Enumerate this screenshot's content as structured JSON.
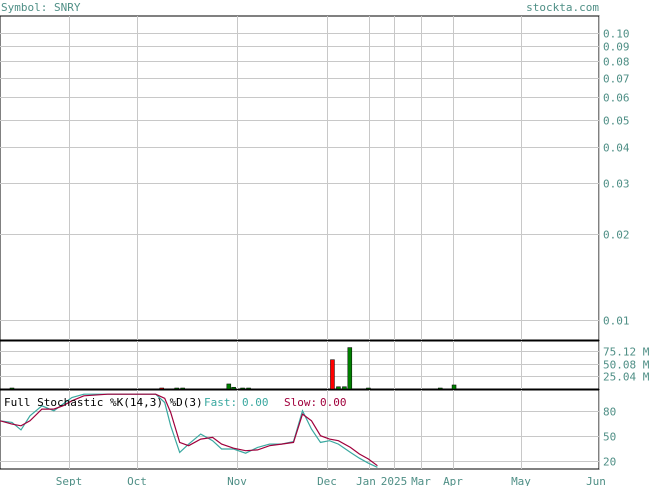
{
  "header": {
    "symbol_label": "Symbol: SNRY",
    "site_label": "stockta.com"
  },
  "colors": {
    "text": "#4f8f86",
    "grid": "#c8c8c8",
    "frame": "#000000",
    "volume_up": "#008000",
    "volume_down": "#ff0000",
    "fast_line": "#3aa8a0",
    "slow_line": "#a0003c"
  },
  "chart_data": [
    {
      "type": "line",
      "name": "price",
      "y_scale": "log",
      "ylim": [
        0.0085,
        0.115
      ],
      "y_ticks": [
        {
          "value": 0.1,
          "label": "0.10"
        },
        {
          "value": 0.09,
          "label": "0.09"
        },
        {
          "value": 0.08,
          "label": "0.08"
        },
        {
          "value": 0.07,
          "label": "0.07"
        },
        {
          "value": 0.06,
          "label": "0.06"
        },
        {
          "value": 0.05,
          "label": "0.05"
        },
        {
          "value": 0.04,
          "label": "0.04"
        },
        {
          "value": 0.03,
          "label": "0.03"
        },
        {
          "value": 0.02,
          "label": "0.02"
        },
        {
          "value": 0.01,
          "label": "0.01"
        }
      ],
      "x_ticks": [
        "Sept",
        "Oct",
        "Nov",
        "Dec",
        "Jan",
        "2025",
        "Mar",
        "Apr",
        "May",
        "Jun"
      ],
      "series": []
    },
    {
      "type": "bar",
      "name": "volume",
      "ylim": [
        0,
        95000000
      ],
      "y_ticks": [
        {
          "value": 75120000,
          "label": "75.12 M"
        },
        {
          "value": 50080000,
          "label": "50.08 M"
        },
        {
          "value": 25040000,
          "label": "25.04 M"
        }
      ],
      "bars": [
        {
          "x": 0.02,
          "value": 1500000,
          "dir": "up"
        },
        {
          "x": 0.27,
          "value": 1200000,
          "dir": "down"
        },
        {
          "x": 0.295,
          "value": 1500000,
          "dir": "up"
        },
        {
          "x": 0.305,
          "value": 1500000,
          "dir": "up"
        },
        {
          "x": 0.382,
          "value": 10000000,
          "dir": "up"
        },
        {
          "x": 0.39,
          "value": 3500000,
          "dir": "up"
        },
        {
          "x": 0.405,
          "value": 1500000,
          "dir": "up"
        },
        {
          "x": 0.415,
          "value": 1500000,
          "dir": "up"
        },
        {
          "x": 0.555,
          "value": 58000000,
          "dir": "down"
        },
        {
          "x": 0.565,
          "value": 4500000,
          "dir": "up"
        },
        {
          "x": 0.575,
          "value": 4500000,
          "dir": "up"
        },
        {
          "x": 0.584,
          "value": 82000000,
          "dir": "up"
        },
        {
          "x": 0.615,
          "value": 1500000,
          "dir": "up"
        },
        {
          "x": 0.735,
          "value": 1500000,
          "dir": "up"
        },
        {
          "x": 0.758,
          "value": 8000000,
          "dir": "up"
        }
      ]
    },
    {
      "type": "line",
      "name": "stochastic",
      "title": "Full Stochastic %K(14,3) %D(3)",
      "fast_label": "Fast:",
      "fast_value": "0.00",
      "slow_label": "Slow:",
      "slow_value": "0.00",
      "ylim": [
        10,
        105
      ],
      "y_ticks": [
        {
          "value": 80,
          "label": "80"
        },
        {
          "value": 50,
          "label": "50"
        },
        {
          "value": 20,
          "label": "20"
        }
      ],
      "series": [
        {
          "name": "Fast",
          "values": [
            [
              0.0,
              68
            ],
            [
              0.02,
              66
            ],
            [
              0.035,
              57
            ],
            [
              0.05,
              74
            ],
            [
              0.07,
              86
            ],
            [
              0.09,
              80
            ],
            [
              0.105,
              88
            ],
            [
              0.12,
              96
            ],
            [
              0.14,
              100
            ],
            [
              0.18,
              100
            ],
            [
              0.22,
              100
            ],
            [
              0.26,
              100
            ],
            [
              0.275,
              90
            ],
            [
              0.285,
              62
            ],
            [
              0.3,
              30
            ],
            [
              0.315,
              40
            ],
            [
              0.335,
              52
            ],
            [
              0.355,
              44
            ],
            [
              0.37,
              34
            ],
            [
              0.39,
              34
            ],
            [
              0.41,
              29
            ],
            [
              0.43,
              36
            ],
            [
              0.45,
              40
            ],
            [
              0.47,
              40
            ],
            [
              0.49,
              43
            ],
            [
              0.505,
              80
            ],
            [
              0.52,
              58
            ],
            [
              0.535,
              42
            ],
            [
              0.55,
              44
            ],
            [
              0.565,
              40
            ],
            [
              0.585,
              30
            ],
            [
              0.6,
              23
            ],
            [
              0.615,
              17
            ],
            [
              0.63,
              12
            ]
          ]
        },
        {
          "name": "Slow",
          "values": [
            [
              0.0,
              68
            ],
            [
              0.02,
              64
            ],
            [
              0.035,
              62
            ],
            [
              0.05,
              68
            ],
            [
              0.07,
              82
            ],
            [
              0.09,
              82
            ],
            [
              0.105,
              86
            ],
            [
              0.12,
              92
            ],
            [
              0.14,
              98
            ],
            [
              0.18,
              100
            ],
            [
              0.22,
              100
            ],
            [
              0.26,
              100
            ],
            [
              0.275,
              95
            ],
            [
              0.285,
              78
            ],
            [
              0.3,
              42
            ],
            [
              0.315,
              38
            ],
            [
              0.335,
              46
            ],
            [
              0.355,
              48
            ],
            [
              0.37,
              40
            ],
            [
              0.39,
              35
            ],
            [
              0.41,
              32
            ],
            [
              0.43,
              33
            ],
            [
              0.45,
              38
            ],
            [
              0.47,
              40
            ],
            [
              0.49,
              42
            ],
            [
              0.505,
              76
            ],
            [
              0.52,
              68
            ],
            [
              0.535,
              50
            ],
            [
              0.55,
              46
            ],
            [
              0.565,
              44
            ],
            [
              0.585,
              36
            ],
            [
              0.6,
              28
            ],
            [
              0.615,
              22
            ],
            [
              0.63,
              14
            ]
          ]
        }
      ]
    }
  ]
}
